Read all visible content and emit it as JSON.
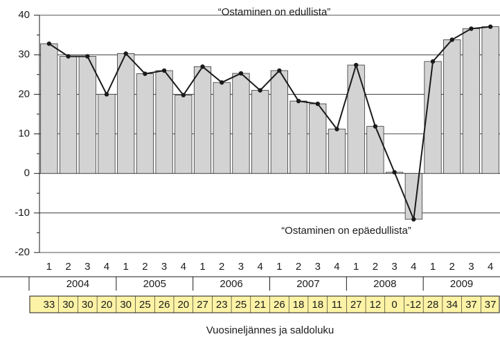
{
  "chart_data": {
    "type": "bar",
    "x_label": "Vuosineljännes ja saldoluku",
    "annotations": [
      "“Ostaminen on edullista”",
      "“Ostaminen on epäedullista”"
    ],
    "categories": [
      "1",
      "2",
      "3",
      "4",
      "1",
      "2",
      "3",
      "4",
      "1",
      "2",
      "3",
      "4",
      "1",
      "2",
      "3",
      "4",
      "1",
      "2",
      "3",
      "4",
      "1",
      "2",
      "3",
      "4"
    ],
    "years": [
      "2004",
      "2005",
      "2006",
      "2007",
      "2008",
      "2009"
    ],
    "values": [
      32.8,
      29.6,
      29.6,
      20,
      30.3,
      25.2,
      26,
      19.8,
      27,
      23,
      25.3,
      21,
      26,
      18.3,
      17.6,
      11.2,
      27.4,
      11.9,
      0.3,
      -11.6,
      28.3,
      33.8,
      36.6,
      37.1
    ],
    "value_labels": [
      "33",
      "30",
      "30",
      "20",
      "30",
      "25",
      "26",
      "20",
      "27",
      "23",
      "25",
      "21",
      "26",
      "18",
      "18",
      "11",
      "27",
      "12",
      "0",
      "-12",
      "28",
      "34",
      "37",
      "37"
    ],
    "color": "#d3d3d3",
    "line_color": "#1a1a1a",
    "ylim": [
      -20,
      40
    ],
    "yticks": [
      -20,
      -10,
      0,
      10,
      20,
      30,
      40
    ],
    "grid": true
  }
}
